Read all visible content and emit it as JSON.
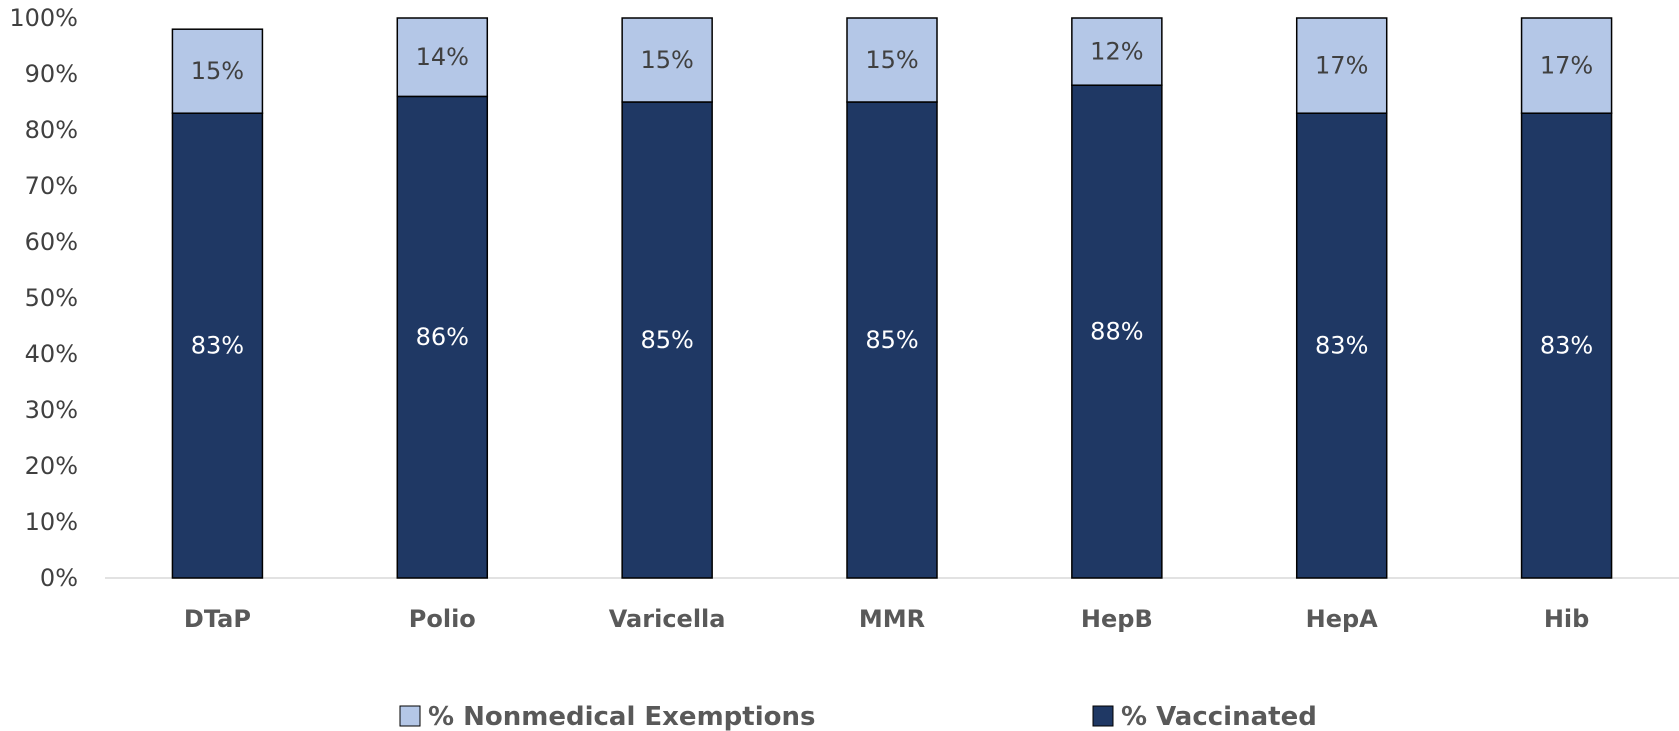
{
  "chart_data": {
    "type": "bar",
    "stacked": true,
    "categories": [
      "DTaP",
      "Polio",
      "Varicella",
      "MMR",
      "HepB",
      "HepA",
      "Hib"
    ],
    "series": [
      {
        "name": "% Vaccinated",
        "values": [
          83,
          86,
          85,
          85,
          88,
          83,
          83
        ],
        "labels": [
          "83%",
          "86%",
          "85%",
          "85%",
          "88%",
          "83%",
          "83%"
        ],
        "color": "#1f3864",
        "label_color": "#ffffff"
      },
      {
        "name": "% Nonmedical Exemptions",
        "values": [
          15,
          14,
          15,
          15,
          12,
          17,
          17
        ],
        "labels": [
          "15%",
          "14%",
          "15%",
          "15%",
          "12%",
          "17%",
          "17%"
        ],
        "color": "#b4c7e7",
        "label_color": "#404040"
      }
    ],
    "ylim": [
      0,
      100
    ],
    "yticks": [
      "0%",
      "10%",
      "20%",
      "30%",
      "40%",
      "50%",
      "60%",
      "70%",
      "80%",
      "90%",
      "100%"
    ],
    "grid": false,
    "legend": {
      "position": "bottom",
      "order": [
        "% Nonmedical Exemptions",
        "% Vaccinated"
      ]
    },
    "title": "",
    "xlabel": "",
    "ylabel": ""
  }
}
